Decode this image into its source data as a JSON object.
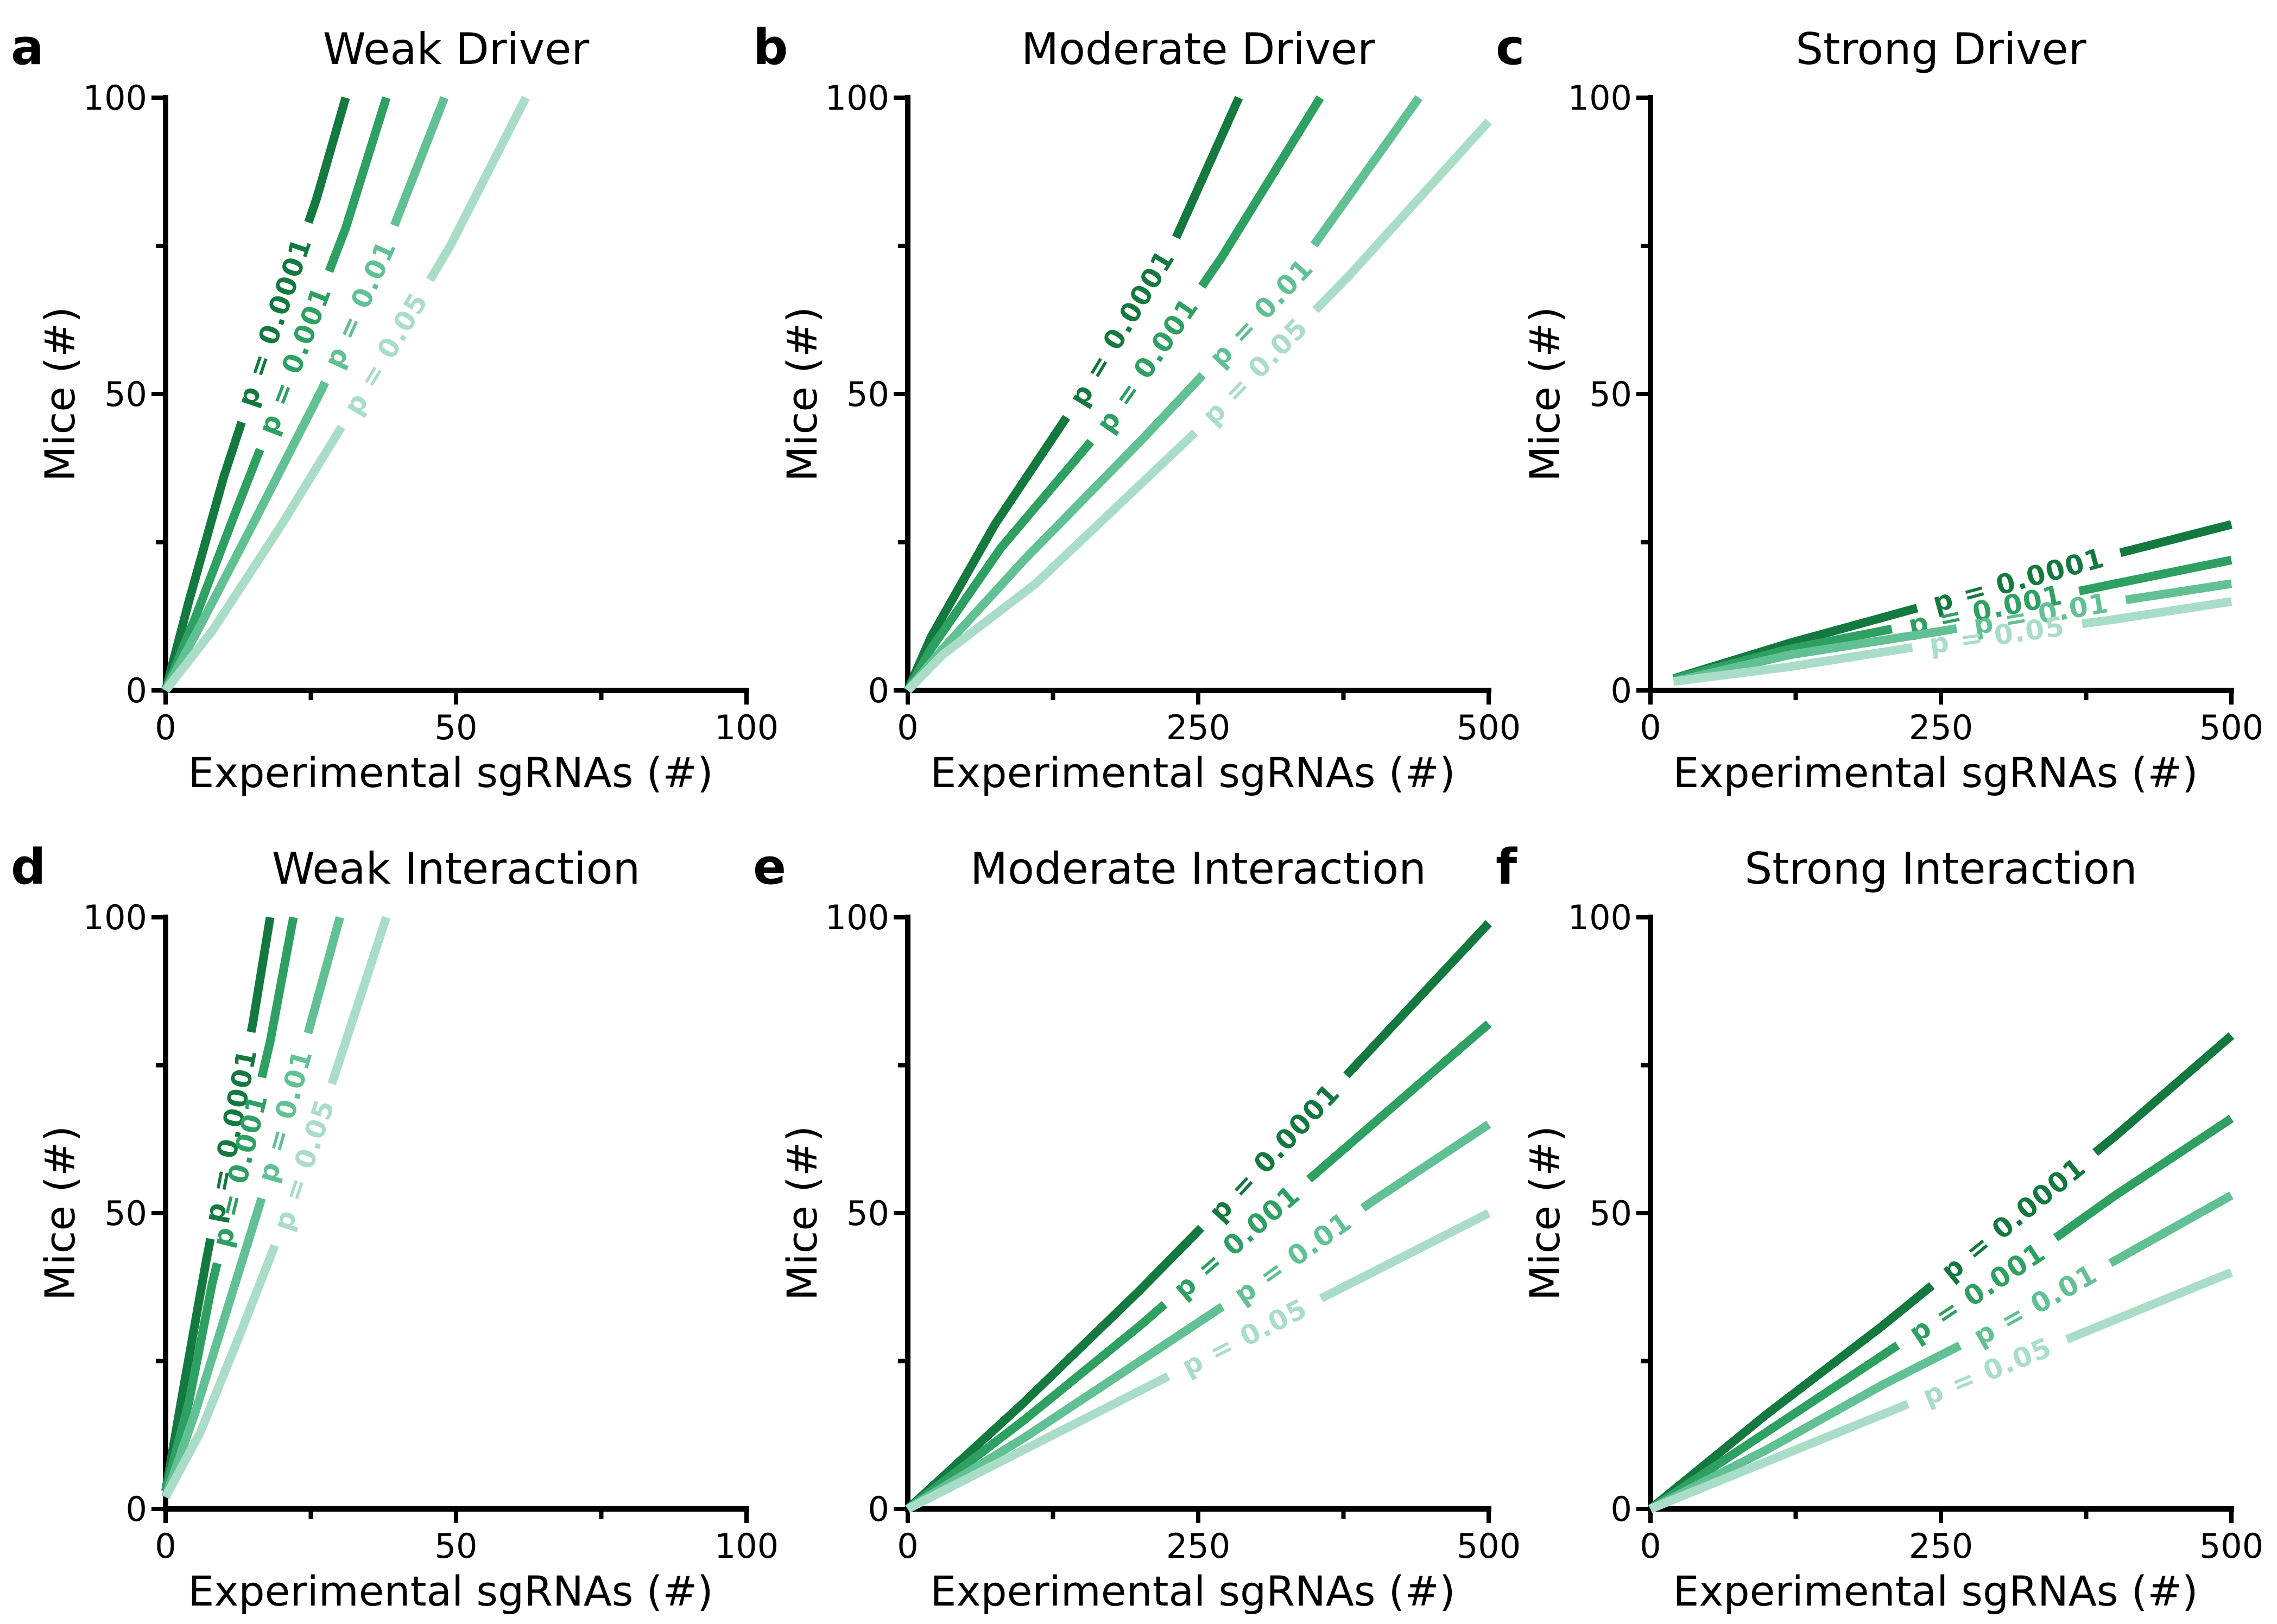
{
  "colors": {
    "p_0.0001": "#14793f",
    "p_0.001": "#2ea062",
    "p_0.01": "#62c194",
    "p_0.05": "#a9ddc8"
  },
  "chart_data": [
    {
      "type": "line",
      "letter": "a",
      "title": "Weak Driver",
      "xlabel": "Experimental sgRNAs (#)",
      "ylabel": "Mice (#)",
      "xlim": [
        0,
        100
      ],
      "ylim": [
        0,
        100
      ],
      "xticks": [
        0,
        50,
        100
      ],
      "yticks": [
        0,
        50,
        100
      ],
      "series": [
        {
          "name": "p = 0.0001",
          "x": [
            0,
            4,
            10,
            18,
            26,
            31
          ],
          "y": [
            0,
            15,
            36,
            60,
            83,
            100
          ]
        },
        {
          "name": "p = 0.001",
          "x": [
            0,
            5,
            12,
            22,
            31,
            38
          ],
          "y": [
            0,
            12,
            30,
            55,
            78,
            100
          ]
        },
        {
          "name": "p = 0.01",
          "x": [
            0,
            6,
            15,
            27,
            38,
            48
          ],
          "y": [
            0,
            11,
            28,
            51,
            75,
            100
          ]
        },
        {
          "name": "p = 0.05",
          "x": [
            0,
            8,
            20,
            35,
            49,
            62
          ],
          "y": [
            0,
            10,
            28,
            52,
            75,
            100
          ]
        }
      ]
    },
    {
      "type": "line",
      "letter": "b",
      "title": "Moderate Driver",
      "xlabel": "Experimental sgRNAs (#)",
      "ylabel": "Mice (#)",
      "xlim": [
        0,
        500
      ],
      "ylim": [
        0,
        100
      ],
      "xticks": [
        0,
        250,
        500
      ],
      "yticks": [
        0,
        50,
        100
      ],
      "series": [
        {
          "name": "p = 0.0001",
          "x": [
            0,
            20,
            75,
            150,
            230,
            285
          ],
          "y": [
            0,
            9,
            28,
            50,
            76,
            100
          ]
        },
        {
          "name": "p = 0.001",
          "x": [
            0,
            20,
            80,
            175,
            270,
            355
          ],
          "y": [
            0,
            7,
            24,
            46,
            73,
            100
          ]
        },
        {
          "name": "p = 0.01",
          "x": [
            0,
            30,
            100,
            200,
            320,
            440
          ],
          "y": [
            0,
            7,
            22,
            42,
            67,
            100
          ]
        },
        {
          "name": "p = 0.05",
          "x": [
            0,
            30,
            110,
            250,
            380,
            500
          ],
          "y": [
            0,
            6,
            18,
            44,
            70,
            96
          ]
        }
      ]
    },
    {
      "type": "line",
      "letter": "c",
      "title": "Strong Driver",
      "xlabel": "Experimental sgRNAs (#)",
      "ylabel": "Mice (#)",
      "xlim": [
        0,
        500
      ],
      "ylim": [
        0,
        100
      ],
      "xticks": [
        0,
        250,
        500
      ],
      "yticks": [
        0,
        50,
        100
      ],
      "series": [
        {
          "name": "p = 0.0001",
          "x": [
            20,
            120,
            250,
            400,
            500
          ],
          "y": [
            2,
            8,
            15,
            23,
            28
          ]
        },
        {
          "name": "p = 0.001",
          "x": [
            20,
            120,
            250,
            400,
            500
          ],
          "y": [
            2,
            7,
            12,
            18,
            22
          ]
        },
        {
          "name": "p = 0.01",
          "x": [
            20,
            120,
            250,
            400,
            500
          ],
          "y": [
            1.5,
            6,
            10,
            15,
            18
          ]
        },
        {
          "name": "p = 0.05",
          "x": [
            20,
            120,
            250,
            400,
            500
          ],
          "y": [
            1.5,
            4,
            8,
            12,
            15
          ]
        }
      ]
    },
    {
      "type": "line",
      "letter": "d",
      "title": "Weak Interaction",
      "xlabel": "Experimental sgRNAs (#)",
      "ylabel": "Mice (#)",
      "xlim": [
        0,
        100
      ],
      "ylim": [
        0,
        100
      ],
      "xticks": [
        0,
        50,
        100
      ],
      "yticks": [
        0,
        50,
        100
      ],
      "series": [
        {
          "name": "p = 0.0001",
          "x": [
            0,
            3,
            7,
            11,
            15,
            18
          ],
          "y": [
            3,
            20,
            42,
            62,
            82,
            100
          ]
        },
        {
          "name": "p = 0.001",
          "x": [
            0,
            4,
            8,
            13,
            18,
            22
          ],
          "y": [
            3,
            18,
            38,
            58,
            79,
            100
          ]
        },
        {
          "name": "p = 0.01",
          "x": [
            0,
            5,
            11,
            17,
            23,
            30
          ],
          "y": [
            2,
            16,
            35,
            54,
            75,
            100
          ]
        },
        {
          "name": "p = 0.05",
          "x": [
            0,
            6,
            13,
            21,
            29,
            38
          ],
          "y": [
            2,
            13,
            30,
            50,
            73,
            100
          ]
        }
      ]
    },
    {
      "type": "line",
      "letter": "e",
      "title": "Moderate Interaction",
      "xlabel": "Experimental sgRNAs (#)",
      "ylabel": "Mice (#)",
      "xlim": [
        0,
        500
      ],
      "ylim": [
        0,
        100
      ],
      "xticks": [
        0,
        250,
        500
      ],
      "yticks": [
        0,
        50,
        100
      ],
      "series": [
        {
          "name": "p = 0.0001",
          "x": [
            0,
            100,
            200,
            300,
            400,
            500
          ],
          "y": [
            0,
            18,
            37,
            57,
            78,
            99
          ]
        },
        {
          "name": "p = 0.001",
          "x": [
            0,
            100,
            200,
            300,
            400,
            500
          ],
          "y": [
            0,
            15,
            31,
            48,
            65,
            82
          ]
        },
        {
          "name": "p = 0.01",
          "x": [
            0,
            100,
            200,
            300,
            400,
            500
          ],
          "y": [
            0,
            12,
            25,
            38,
            52,
            65
          ]
        },
        {
          "name": "p = 0.05",
          "x": [
            0,
            100,
            200,
            300,
            400,
            500
          ],
          "y": [
            0,
            10,
            20,
            30,
            40,
            50
          ]
        }
      ]
    },
    {
      "type": "line",
      "letter": "f",
      "title": "Strong Interaction",
      "xlabel": "Experimental sgRNAs (#)",
      "ylabel": "Mice (#)",
      "xlim": [
        0,
        500
      ],
      "ylim": [
        0,
        100
      ],
      "xticks": [
        0,
        250,
        500
      ],
      "yticks": [
        0,
        50,
        100
      ],
      "series": [
        {
          "name": "p = 0.0001",
          "x": [
            0,
            100,
            200,
            300,
            400,
            500
          ],
          "y": [
            0,
            16,
            31,
            47,
            63,
            80
          ]
        },
        {
          "name": "p = 0.001",
          "x": [
            0,
            100,
            200,
            300,
            400,
            500
          ],
          "y": [
            0,
            13,
            26,
            39,
            53,
            66
          ]
        },
        {
          "name": "p = 0.01",
          "x": [
            0,
            100,
            200,
            300,
            400,
            500
          ],
          "y": [
            0,
            10,
            21,
            31,
            42,
            53
          ]
        },
        {
          "name": "p = 0.05",
          "x": [
            0,
            100,
            200,
            300,
            400,
            500
          ],
          "y": [
            0,
            8,
            16,
            24,
            32,
            40
          ]
        }
      ]
    }
  ]
}
